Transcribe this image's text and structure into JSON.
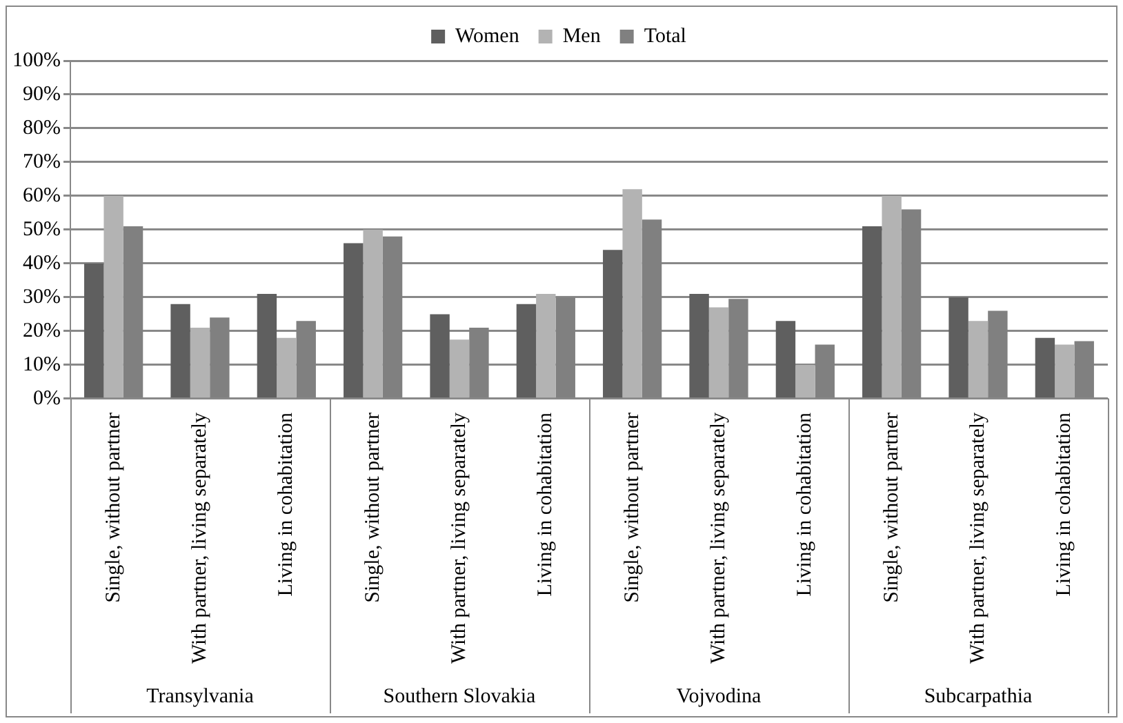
{
  "chart_data": {
    "type": "bar",
    "categories": [
      "Single, without partner",
      "With partner, living separately",
      "Living in cohabitation",
      "Single, without partner",
      "With partner, living separately",
      "Living in cohabitation",
      "Single, without partner",
      "With partner, living separately",
      "Living in cohabitation",
      "Single, without partner",
      "With partner, living separately",
      "Living in cohabitation"
    ],
    "series": [
      {
        "name": "Women",
        "color": "#5f5f5f",
        "values": [
          40,
          28,
          31,
          46,
          25,
          28,
          44,
          31,
          23,
          51,
          30,
          18
        ]
      },
      {
        "name": "Men",
        "color": "#b3b3b3",
        "values": [
          60,
          21,
          18,
          50,
          17.5,
          31,
          62,
          27,
          10,
          60,
          23,
          16
        ]
      },
      {
        "name": "Total",
        "color": "#808080",
        "values": [
          51,
          24,
          23,
          48,
          21,
          30,
          53,
          29.5,
          16,
          56,
          26,
          17
        ]
      }
    ],
    "annotations": [
      "Transylvania",
      "Southern Slovakia",
      "Vojvodina",
      "Subcarpathia"
    ],
    "ylim": [
      0,
      100
    ],
    "yticks": [
      {
        "value": 0,
        "label": "0%"
      },
      {
        "value": 10,
        "label": "10%"
      },
      {
        "value": 20,
        "label": "20%"
      },
      {
        "value": 30,
        "label": "30%"
      },
      {
        "value": 40,
        "label": "40%"
      },
      {
        "value": 50,
        "label": "50%"
      },
      {
        "value": 60,
        "label": "60%"
      },
      {
        "value": 70,
        "label": "70%"
      },
      {
        "value": 80,
        "label": "80%"
      },
      {
        "value": 90,
        "label": "90%"
      },
      {
        "value": 100,
        "label": "100%"
      }
    ],
    "grid": "y",
    "legend": "top"
  }
}
